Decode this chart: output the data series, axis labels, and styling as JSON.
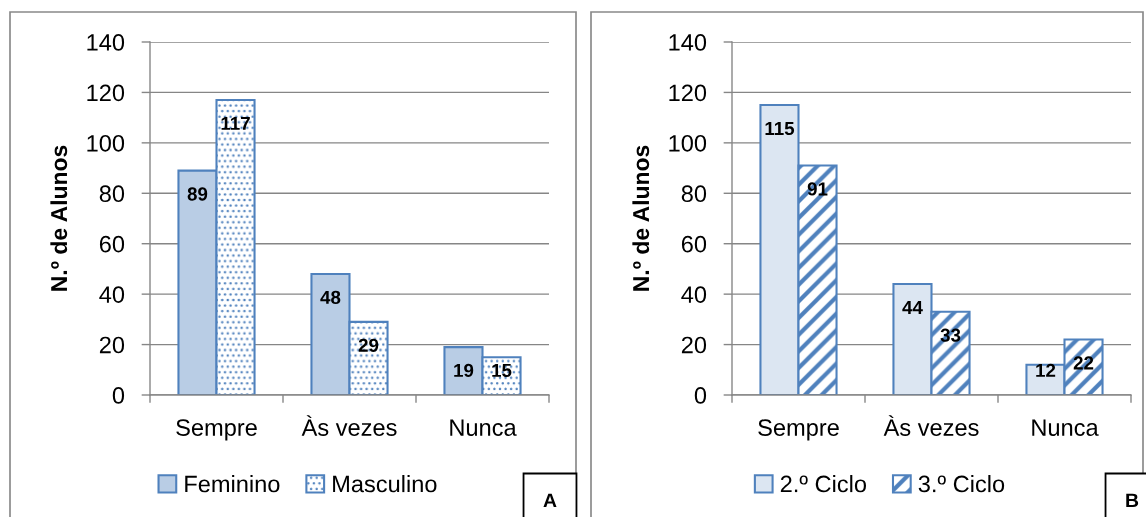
{
  "chart_data": [
    {
      "type": "bar",
      "categories": [
        "Sempre",
        "Às vezes",
        "Nunca"
      ],
      "series": [
        {
          "name": "Feminino",
          "color": "#b9cde5",
          "values": [
            89,
            48,
            19
          ]
        },
        {
          "name": "Masculino",
          "color": "#4f81bd",
          "values": [
            117,
            29,
            15
          ]
        }
      ],
      "ylabel": "N.º de Alunos",
      "ylim": [
        0,
        140
      ],
      "yticks": [
        0,
        20,
        40,
        60,
        80,
        100,
        120,
        140
      ],
      "grid": "y",
      "legend": "bottom",
      "data_labels": true,
      "annotations": [
        "A"
      ]
    },
    {
      "type": "bar",
      "categories": [
        "Sempre",
        "Às vezes",
        "Nunca"
      ],
      "series": [
        {
          "name": "2.º Ciclo",
          "color": "#dce6f2",
          "values": [
            115,
            44,
            12
          ]
        },
        {
          "name": "3.º Ciclo",
          "color": "#4f81bd",
          "values": [
            91,
            33,
            22
          ]
        }
      ],
      "ylabel": "N.º de Alunos",
      "ylim": [
        0,
        140
      ],
      "yticks": [
        0,
        20,
        40,
        60,
        80,
        100,
        120,
        140
      ],
      "grid": "y",
      "legend": "bottom",
      "data_labels": true,
      "annotations": [
        "B"
      ]
    }
  ]
}
